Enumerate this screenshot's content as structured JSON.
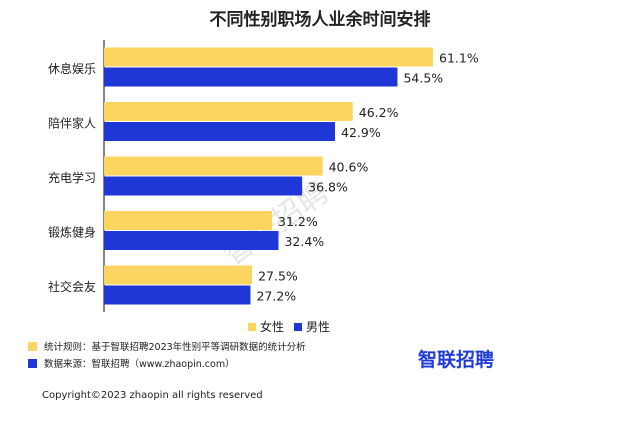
{
  "chart_data": {
    "type": "bar",
    "orientation": "horizontal",
    "title": "不同性别职场人业余时间安排",
    "categories": [
      "休息娱乐",
      "陪伴家人",
      "充电学习",
      "锻炼健身",
      "社交会友"
    ],
    "series": [
      {
        "name": "女性",
        "values": [
          61.1,
          46.2,
          40.6,
          31.2,
          27.5
        ],
        "labels": [
          "61.1%",
          "46.2%",
          "40.6%",
          "31.2%",
          "27.5%"
        ],
        "color": "#fcd460"
      },
      {
        "name": "男性",
        "values": [
          54.5,
          42.9,
          36.8,
          32.4,
          27.2
        ],
        "labels": [
          "54.5%",
          "42.9%",
          "36.8%",
          "32.4%",
          "27.2%"
        ],
        "color": "#1f37d6"
      }
    ],
    "xlim": [
      0,
      65
    ],
    "grid": false,
    "legend_position": "bottom"
  },
  "footnotes": [
    {
      "text": "统计规则：基于智联招聘2023年性别平等调研数据的统计分析",
      "color": "#fcd460"
    },
    {
      "text": "数据来源：智联招聘（www.zhaopin.com）",
      "color": "#1f37d6"
    }
  ],
  "logo": "智联招聘",
  "watermark": "智联招聘",
  "copyright": "Copyright©2023 zhaopin all rights reserved",
  "colors": {
    "axis": "#333333",
    "text": "#222222"
  }
}
